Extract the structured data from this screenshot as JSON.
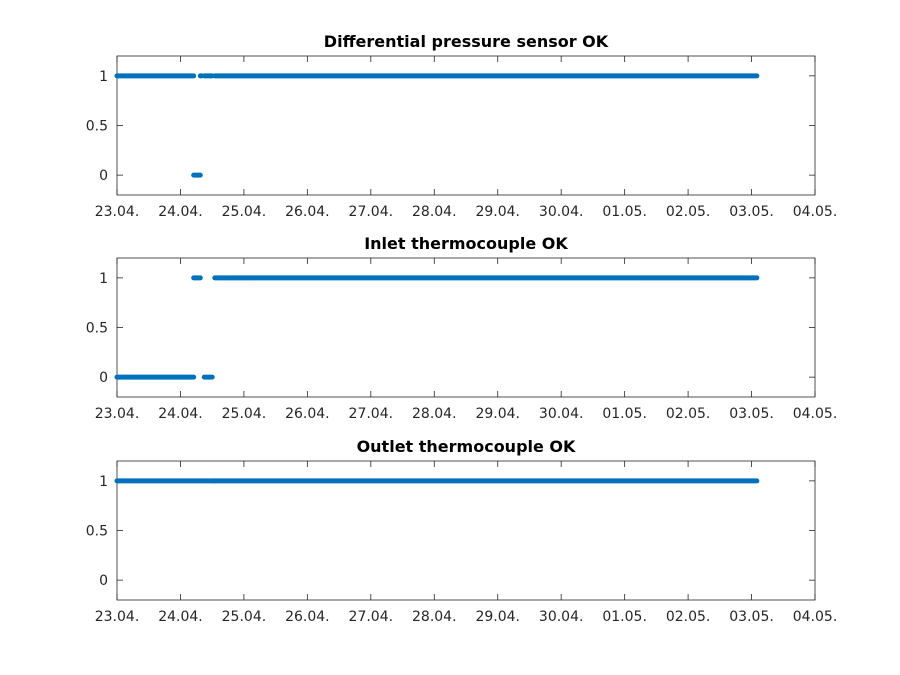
{
  "chart_data": [
    {
      "type": "scatter",
      "title": "Differential pressure sensor OK",
      "xlabel": "",
      "ylabel": "",
      "xlim": [
        "23.04.",
        "04.05."
      ],
      "ylim": [
        -0.2,
        1.2
      ],
      "x_tick_labels": [
        "23.04.",
        "24.04.",
        "25.04.",
        "26.04.",
        "27.04.",
        "28.04.",
        "29.04.",
        "30.04.",
        "01.05.",
        "02.05.",
        "03.05.",
        "04.05."
      ],
      "y_ticks": [
        0,
        0.5,
        1
      ],
      "y_tick_labels": [
        "0",
        "0.5",
        "1"
      ],
      "series_color": "#0072BD",
      "grid": false,
      "segments": [
        {
          "value": 1,
          "from": "23.04. 00:00",
          "to": "24.04. 05:00"
        },
        {
          "value": 0,
          "from": "24.04. 05:00",
          "to": "24.04. 07:30"
        },
        {
          "value": 1,
          "from": "24.04. 07:30",
          "to": "24.04. 08:00"
        },
        {
          "value": 1,
          "from": "24.04. 09:00",
          "to": "24.04. 12:00"
        },
        {
          "value": 1,
          "from": "24.04. 13:00",
          "to": "03.05. 02:00"
        }
      ]
    },
    {
      "type": "scatter",
      "title": "Inlet thermocouple OK",
      "xlabel": "",
      "ylabel": "",
      "xlim": [
        "23.04.",
        "04.05."
      ],
      "ylim": [
        -0.2,
        1.2
      ],
      "x_tick_labels": [
        "23.04.",
        "24.04.",
        "25.04.",
        "26.04.",
        "27.04.",
        "28.04.",
        "29.04.",
        "30.04.",
        "01.05.",
        "02.05.",
        "03.05.",
        "04.05."
      ],
      "y_ticks": [
        0,
        0.5,
        1
      ],
      "y_tick_labels": [
        "0",
        "0.5",
        "1"
      ],
      "series_color": "#0072BD",
      "grid": false,
      "segments": [
        {
          "value": 0,
          "from": "23.04. 00:00",
          "to": "24.04. 05:00"
        },
        {
          "value": 1,
          "from": "24.04. 05:00",
          "to": "24.04. 07:30"
        },
        {
          "value": 0,
          "from": "24.04. 09:00",
          "to": "24.04. 12:00"
        },
        {
          "value": 1,
          "from": "24.04. 13:00",
          "to": "03.05. 02:00"
        }
      ]
    },
    {
      "type": "scatter",
      "title": "Outlet thermocouple OK",
      "xlabel": "",
      "ylabel": "",
      "xlim": [
        "23.04.",
        "04.05."
      ],
      "ylim": [
        -0.2,
        1.2
      ],
      "x_tick_labels": [
        "23.04.",
        "24.04.",
        "25.04.",
        "26.04.",
        "27.04.",
        "28.04.",
        "29.04.",
        "30.04.",
        "01.05.",
        "02.05.",
        "03.05.",
        "04.05."
      ],
      "y_ticks": [
        0,
        0.5,
        1
      ],
      "y_tick_labels": [
        "0",
        "0.5",
        "1"
      ],
      "series_color": "#0072BD",
      "grid": false,
      "segments": [
        {
          "value": 1,
          "from": "23.04. 00:00",
          "to": "24.04. 13:00"
        },
        {
          "value": 1,
          "from": "24.04. 13:00",
          "to": "03.05. 02:00"
        }
      ]
    }
  ]
}
